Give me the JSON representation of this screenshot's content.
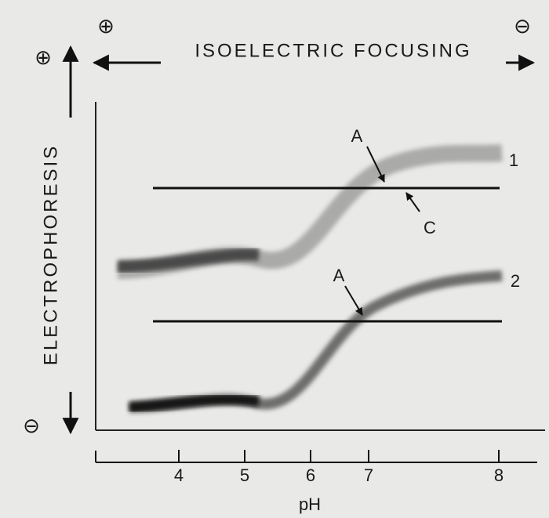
{
  "figure": {
    "top_arrow": {
      "label": "ISOELECTRIC FOCUSING",
      "left_sign": "⊕",
      "right_sign": "⊖"
    },
    "side_arrow": {
      "label": "ELECTROPHORESIS",
      "top_sign": "⊕",
      "bottom_sign": "⊖"
    },
    "annotations": [
      {
        "label": "A"
      },
      {
        "label": "C"
      },
      {
        "label": "1"
      },
      {
        "label": "A"
      },
      {
        "label": "2"
      }
    ],
    "axis": {
      "ticks": [
        "4",
        "5",
        "6",
        "7",
        "8"
      ],
      "label": "pH"
    }
  }
}
